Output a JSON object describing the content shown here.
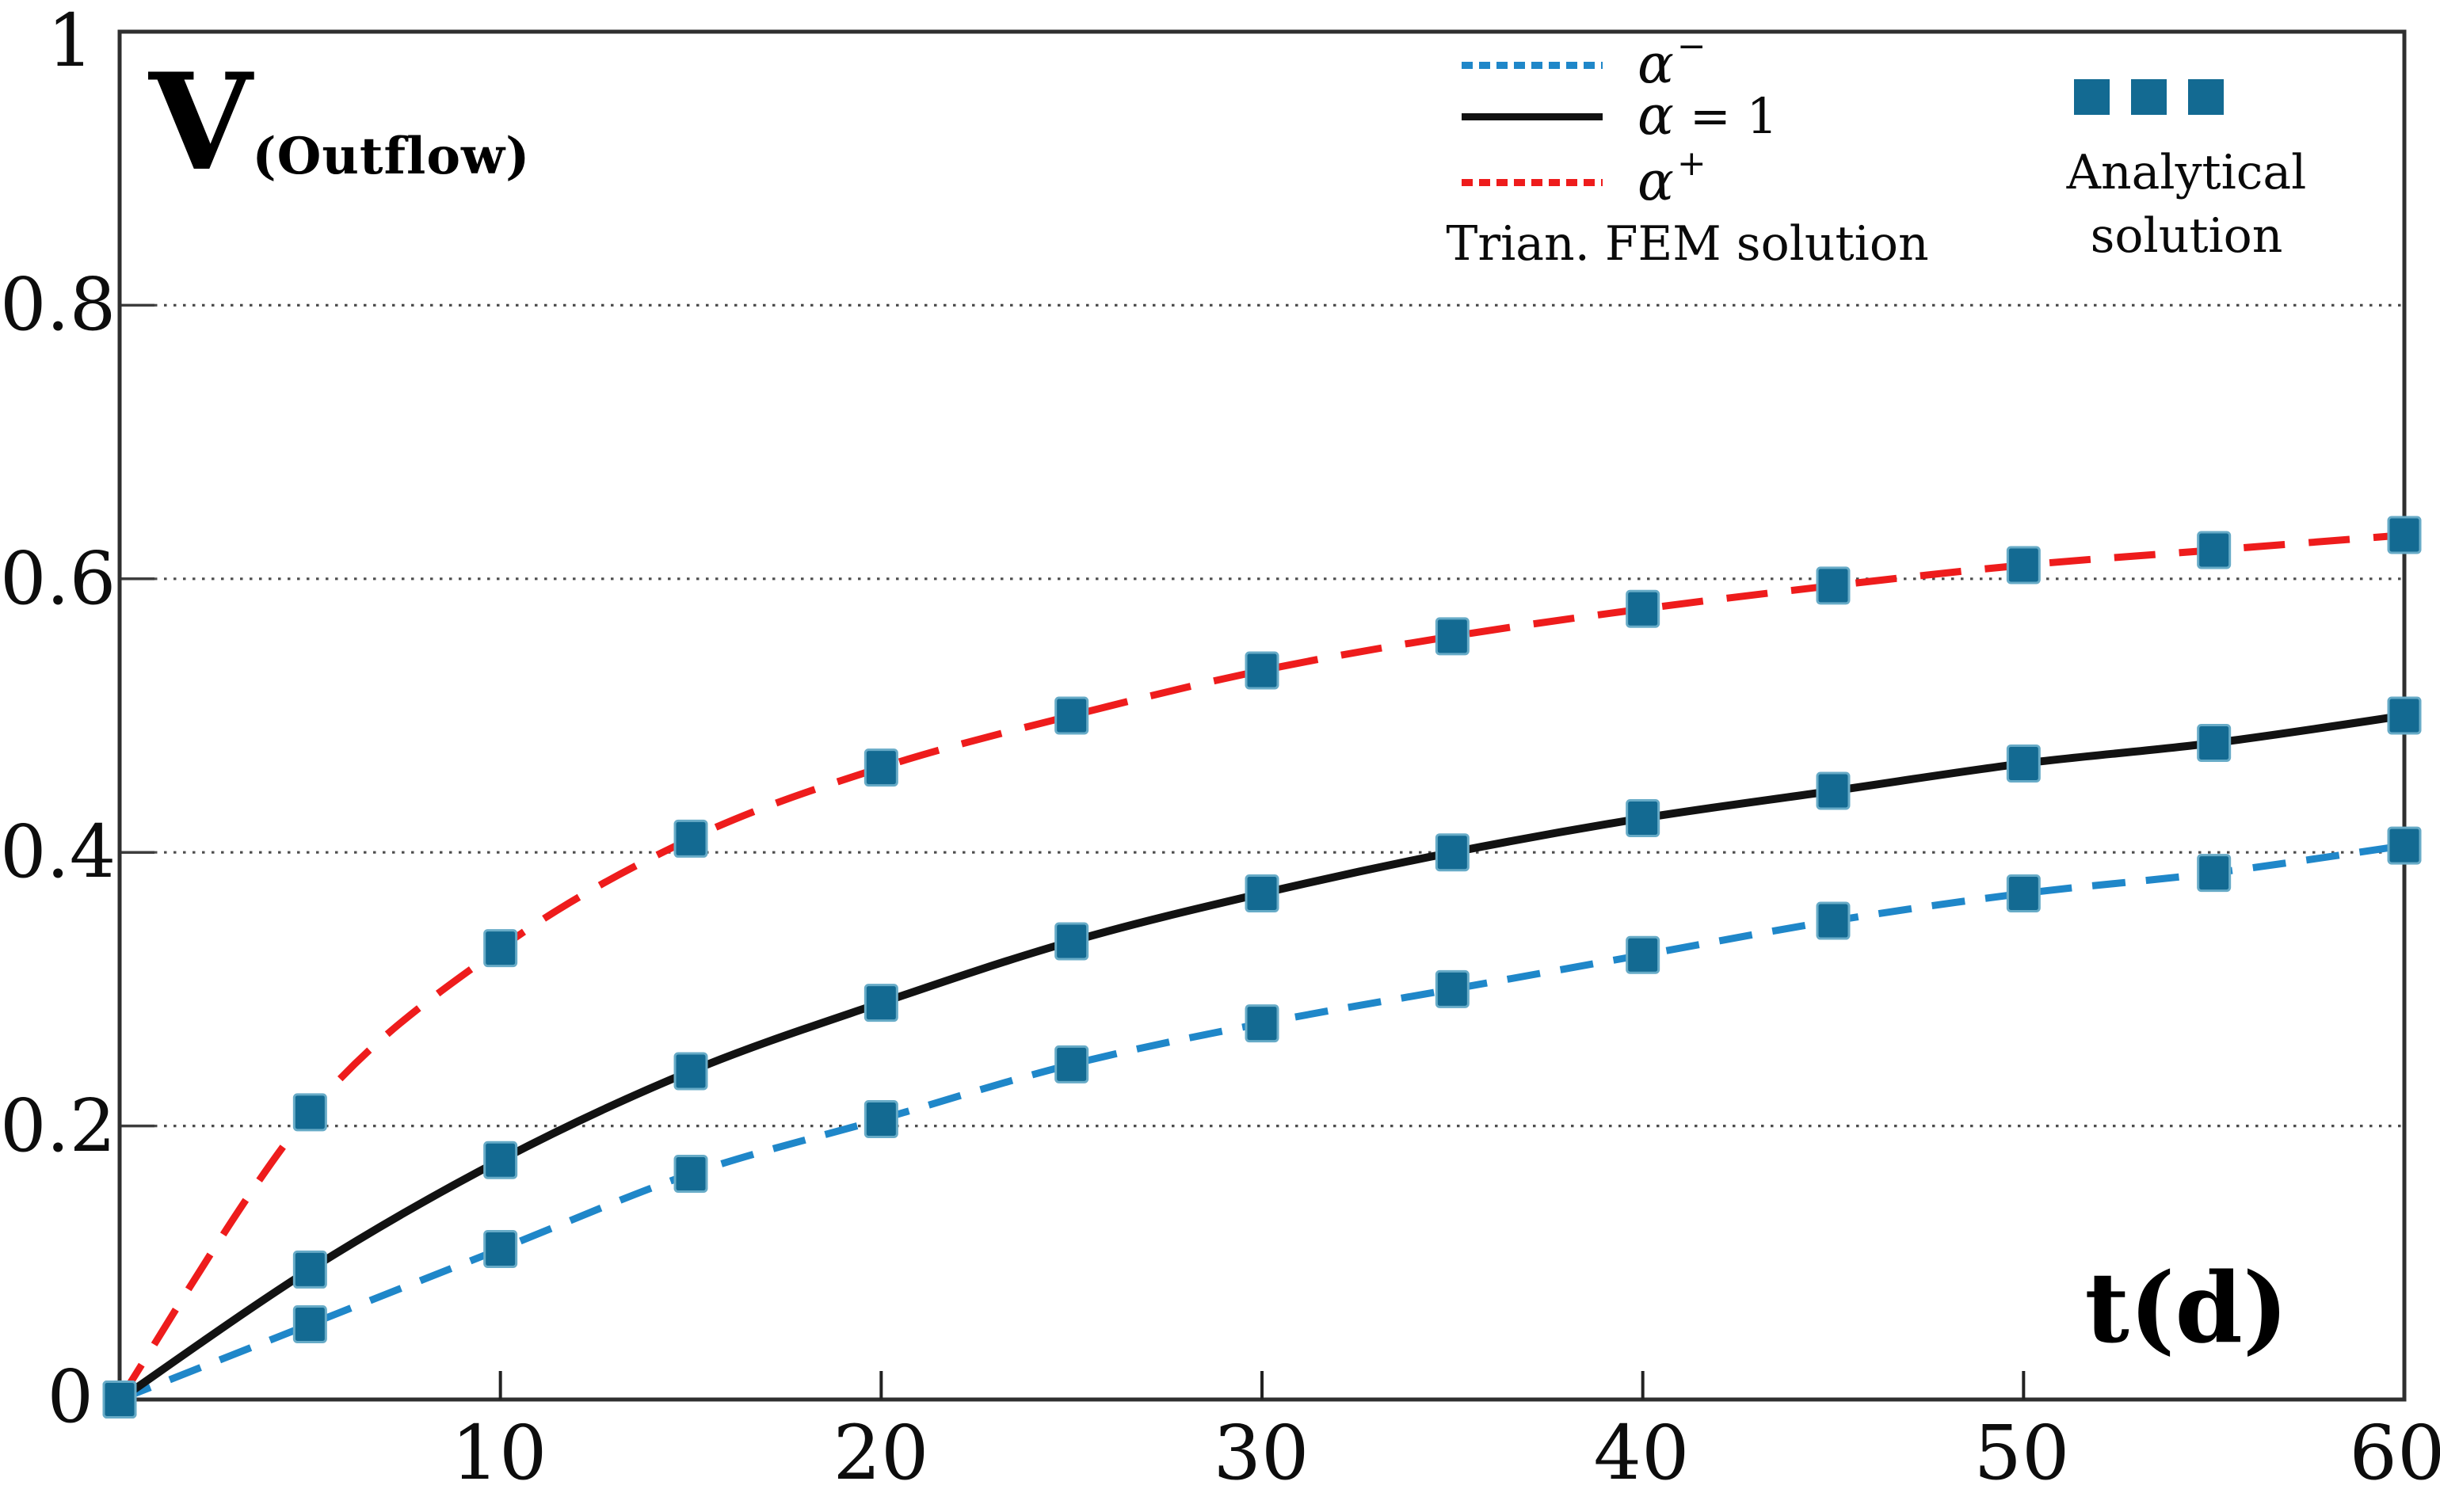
{
  "figure": {
    "v_label_main": "V",
    "v_label_sub": "(Outflow)",
    "x_axis_label": "t(d)",
    "y_ticks": [
      "1",
      "0.8",
      "0.6",
      "0.4",
      "0.2",
      "0"
    ],
    "x_ticks": [
      "10",
      "20",
      "30",
      "40",
      "50",
      "60"
    ]
  },
  "legend": {
    "items": [
      {
        "label": "α",
        "sup": "−",
        "eq": ""
      },
      {
        "label": "α",
        "sup": "",
        "eq": "= 1"
      },
      {
        "label": "α",
        "sup": "+",
        "eq": ""
      }
    ],
    "fem_caption": "Trian. FEM solution",
    "analytical_line1": "Analytical",
    "analytical_line2": "solution"
  },
  "chart_data": {
    "type": "line",
    "title": "",
    "xlabel": "t(d)",
    "ylabel": "V(Outflow)",
    "xlim": [
      0,
      60
    ],
    "ylim": [
      0,
      1
    ],
    "x_tick_values": [
      10,
      20,
      30,
      40,
      50,
      60
    ],
    "y_tick_values": [
      0,
      0.2,
      0.4,
      0.6,
      0.8,
      1
    ],
    "grid": "horizontal dotted lines at 0.2, 0.4, 0.6, 0.8",
    "legend_position": "top",
    "x": [
      0,
      5,
      10,
      15,
      20,
      25,
      30,
      35,
      40,
      45,
      50,
      55,
      60
    ],
    "series": [
      {
        "name": "α− Trian. FEM solution",
        "line_style": "dashed",
        "color": "#1f87c9",
        "values": [
          0,
          0.055,
          0.11,
          0.165,
          0.205,
          0.245,
          0.275,
          0.3,
          0.325,
          0.35,
          0.37,
          0.385,
          0.405
        ]
      },
      {
        "name": "α = 1 Trian. FEM solution",
        "line_style": "solid",
        "color": "#121212",
        "values": [
          0,
          0.095,
          0.175,
          0.24,
          0.29,
          0.335,
          0.37,
          0.4,
          0.425,
          0.445,
          0.465,
          0.48,
          0.5
        ]
      },
      {
        "name": "α+ Trian. FEM solution",
        "line_style": "dashed",
        "color": "#ee1c1c",
        "values": [
          0,
          0.21,
          0.33,
          0.41,
          0.462,
          0.5,
          0.533,
          0.558,
          0.578,
          0.595,
          0.61,
          0.621,
          0.632
        ]
      }
    ],
    "markers": {
      "name": "Analytical solution",
      "shape": "square",
      "color": "#136a92",
      "note": "square markers plotted at every 5 d on all three curves"
    }
  }
}
